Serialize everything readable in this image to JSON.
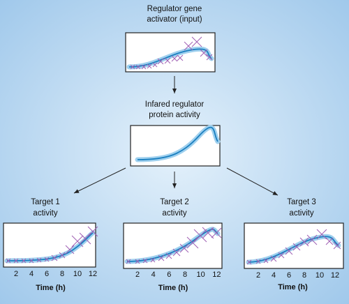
{
  "input": {
    "title_lines": [
      "Regulator gene",
      "activator (input)"
    ]
  },
  "regulator": {
    "title_lines": [
      "Infared regulator",
      "protein activity"
    ]
  },
  "targets": [
    {
      "title_lines": [
        "Target 1",
        "activity"
      ],
      "xlim": [
        0.5,
        12.5
      ],
      "xticks": [
        2,
        4,
        6,
        8,
        10,
        12
      ],
      "xlabel": "Time (h)"
    },
    {
      "title_lines": [
        "Target 2",
        "activity"
      ],
      "xlim": [
        0.5,
        12.5
      ],
      "xticks": [
        2,
        4,
        6,
        8,
        10,
        12
      ],
      "xlabel": "Time (h)"
    },
    {
      "title_lines": [
        "Target 3",
        "activity"
      ],
      "xlim": [
        0.5,
        12.5
      ],
      "xticks": [
        2,
        4,
        6,
        8,
        10,
        12
      ],
      "xlabel": "Time (h)"
    }
  ]
}
